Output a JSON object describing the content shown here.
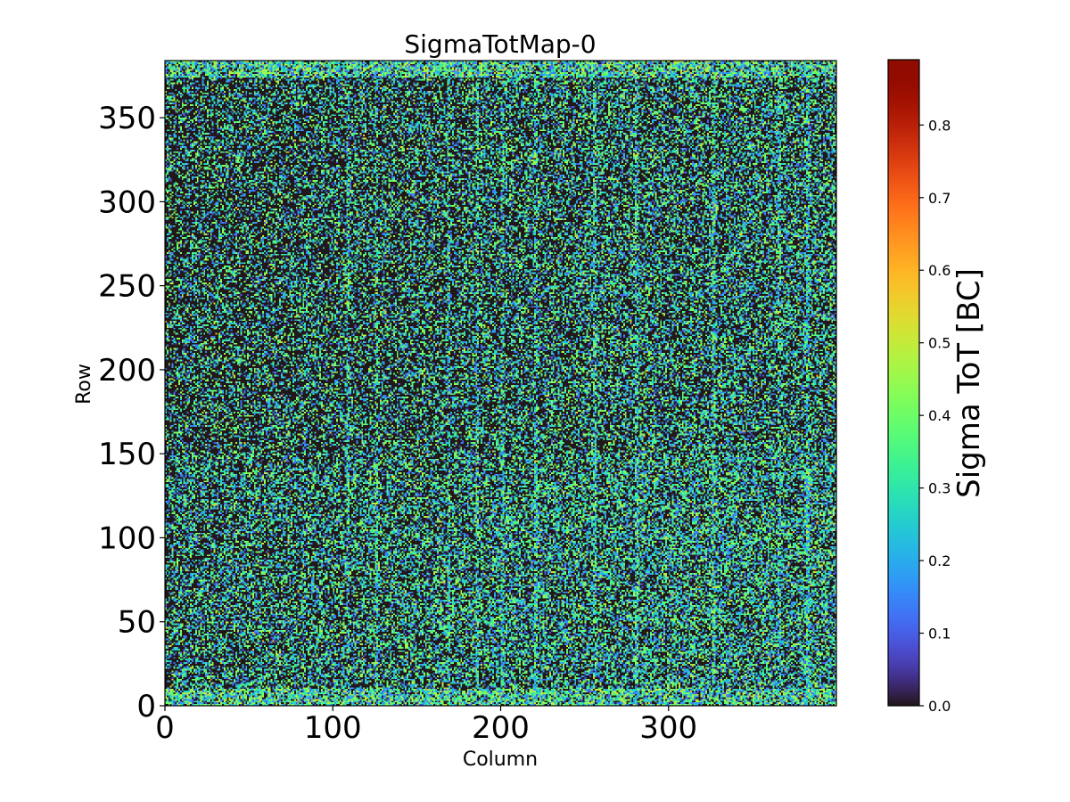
{
  "chart_data": {
    "type": "heatmap",
    "title": "SigmaTotMap-0",
    "xlabel": "Column",
    "ylabel": "Row",
    "xlim": [
      0,
      400
    ],
    "ylim": [
      0,
      384
    ],
    "xticks": [
      0,
      100,
      200,
      300
    ],
    "yticks": [
      0,
      50,
      100,
      150,
      200,
      250,
      300,
      350
    ],
    "grid": false,
    "colormap": "turbo",
    "colorbar": {
      "label": "Sigma ToT [BC]",
      "range": [
        0.0,
        0.89
      ],
      "ticks": [
        "0.0",
        "0.1",
        "0.2",
        "0.3",
        "0.4",
        "0.5",
        "0.6",
        "0.7",
        "0.8"
      ]
    },
    "matrix_shape": [
      384,
      400
    ],
    "description_of_values": {
      "background_level": 0.0,
      "typical_scatter_max": 0.5,
      "edge_rows_high": [
        [
          0,
          10
        ],
        [
          374,
          384
        ]
      ],
      "bright_columns": [
        108,
        125,
        168,
        185,
        200,
        220,
        255,
        280,
        326,
        365,
        382
      ]
    }
  },
  "colors": {
    "background": "#ffffff",
    "axis": "#000000",
    "cmap_low": "#30123b",
    "cmap_high": "#7a0403"
  }
}
